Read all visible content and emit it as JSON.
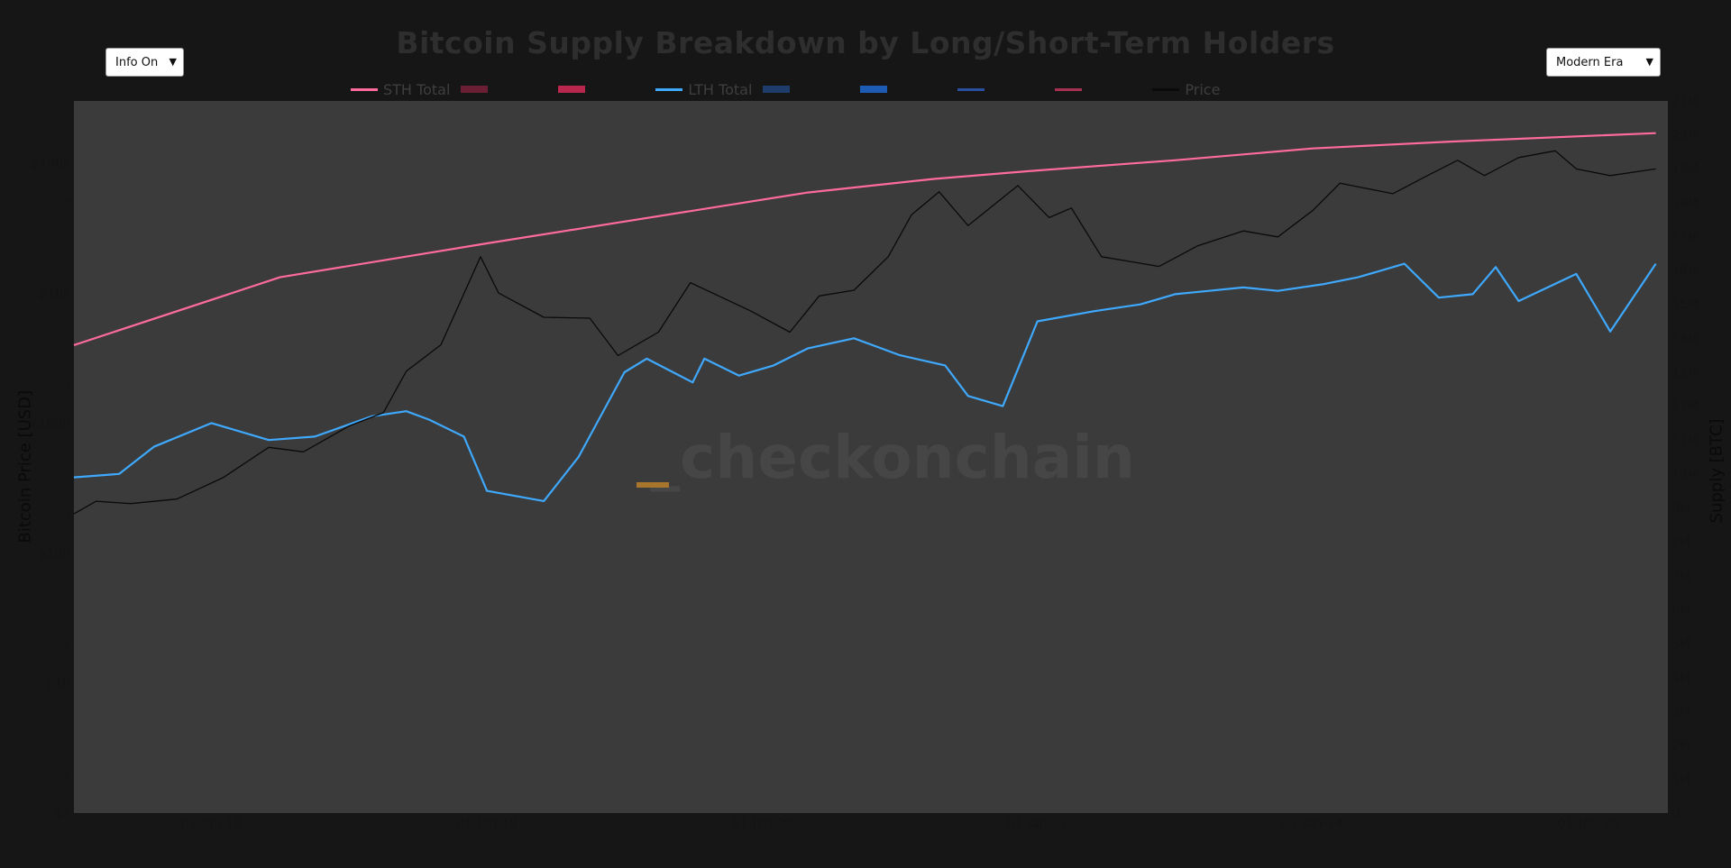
{
  "controls": {
    "info_label": "Info On",
    "era_label": "Modern Era"
  },
  "watermark": "_checkonchain",
  "chart_data": {
    "type": "line",
    "title": "Bitcoin Supply Breakdown by Long/Short-Term Holders",
    "ylabel_left": "Bitcoin Price [USD]",
    "ylabel_right": "Supply [BTC]",
    "x_ticks": [
      "01-Jan-16",
      "01-Jan-18",
      "01-Jan-20",
      "01-Jan-22",
      "01-Jan-24",
      "01-Jan-26"
    ],
    "x_range": [
      "2015-01-01",
      "2026-08-01"
    ],
    "y_left": {
      "scale": "log",
      "range": [
        1,
        300000
      ],
      "tick_labels": [
        "$1",
        "$10",
        "$100",
        "$1000",
        "$10k",
        "$100k"
      ],
      "tick_values": [
        1,
        10,
        100,
        1000,
        10000,
        100000
      ]
    },
    "y_right": {
      "scale": "linear",
      "range": [
        0,
        21000000
      ],
      "tick_labels": [
        "0",
        "1M",
        "2M",
        "3M",
        "4M",
        "5M",
        "6M",
        "7M",
        "8M",
        "9M",
        "10M",
        "11M",
        "12M",
        "13M",
        "14M",
        "15M",
        "16M",
        "17M",
        "18M",
        "19M",
        "20M",
        "21M"
      ]
    },
    "legend": [
      {
        "name": "STH Total",
        "color": "#ff6b9a",
        "style": "line"
      },
      {
        "name": "",
        "color": "#6a1f35",
        "style": "bar"
      },
      {
        "name": "",
        "color": "#b8284e",
        "style": "bar"
      },
      {
        "name": "LTH Total",
        "color": "#3fa9ff",
        "style": "line"
      },
      {
        "name": "",
        "color": "#1f3d6a",
        "style": "bar"
      },
      {
        "name": "",
        "color": "#1e5bb5",
        "style": "bar"
      },
      {
        "name": "",
        "color": "#2a4fa0",
        "style": "line"
      },
      {
        "name": "",
        "color": "#a83050",
        "style": "line"
      },
      {
        "name": "Price",
        "color": "#0a0a0a",
        "style": "line"
      }
    ],
    "series": [
      {
        "name": "STH Total",
        "axis": "right",
        "color": "#ff6b9a",
        "x": [
          "2015-01-01",
          "2016-07-01",
          "2018-01-01",
          "2020-05-01",
          "2021-04-01",
          "2022-01-01",
          "2023-01-01",
          "2024-01-01",
          "2025-01-01",
          "2026-06-30"
        ],
        "y": [
          13800000,
          15800000,
          16800000,
          18300000,
          18700000,
          18950000,
          19250000,
          19600000,
          19800000,
          20050000
        ]
      },
      {
        "name": "LTH Total",
        "axis": "right",
        "color": "#3fa9ff",
        "x": [
          "2015-01-01",
          "2015-05-01",
          "2015-08-01",
          "2016-01-01",
          "2016-06-01",
          "2016-10-01",
          "2017-03-01",
          "2017-06-01",
          "2017-08-01",
          "2017-11-01",
          "2018-01-01",
          "2018-06-01",
          "2018-09-01",
          "2019-01-01",
          "2019-03-01",
          "2019-07-01",
          "2019-08-01",
          "2019-11-01",
          "2020-02-01",
          "2020-05-01",
          "2020-09-01",
          "2021-01-01",
          "2021-05-01",
          "2021-07-01",
          "2021-10-01",
          "2022-01-01",
          "2022-06-01",
          "2022-10-01",
          "2023-01-01",
          "2023-04-01",
          "2023-07-01",
          "2023-10-01",
          "2024-02-01",
          "2024-05-01",
          "2024-09-01",
          "2024-12-01",
          "2025-03-01",
          "2025-05-01",
          "2025-07-01",
          "2025-12-01",
          "2026-03-01",
          "2026-06-30"
        ],
        "y": [
          9900000,
          10000000,
          10800000,
          11500000,
          11000000,
          11100000,
          11700000,
          11850000,
          11600000,
          11100000,
          9500000,
          9200000,
          10500000,
          13000000,
          13400000,
          12700000,
          13400000,
          12900000,
          13200000,
          13700000,
          14000000,
          13500000,
          13200000,
          12300000,
          12000000,
          14500000,
          14800000,
          15000000,
          15300000,
          15400000,
          15500000,
          15400000,
          15600000,
          15800000,
          16200000,
          15200000,
          15300000,
          16100000,
          15100000,
          15900000,
          14200000,
          16200000
        ]
      },
      {
        "name": "Price",
        "axis": "left",
        "color": "#0a0a0a",
        "x": [
          "2015-01-01",
          "2015-03-01",
          "2015-06-01",
          "2015-10-01",
          "2016-02-01",
          "2016-06-01",
          "2016-09-01",
          "2017-01-01",
          "2017-04-01",
          "2017-06-01",
          "2017-09-01",
          "2017-12-15",
          "2018-02-01",
          "2018-06-01",
          "2018-10-01",
          "2018-12-15",
          "2019-04-01",
          "2019-06-25",
          "2019-12-01",
          "2020-03-15",
          "2020-06-01",
          "2020-09-01",
          "2020-12-01",
          "2021-02-01",
          "2021-04-15",
          "2021-07-01",
          "2021-11-10",
          "2022-02-01",
          "2022-04-01",
          "2022-06-20",
          "2022-11-20",
          "2023-03-01",
          "2023-07-01",
          "2023-10-01",
          "2024-01-01",
          "2024-03-14",
          "2024-08-01",
          "2024-11-01",
          "2025-01-20",
          "2025-04-01",
          "2025-07-01",
          "2025-10-06",
          "2025-12-01",
          "2026-03-01",
          "2026-06-30"
        ],
        "y": [
          200,
          250,
          240,
          260,
          380,
          650,
          600,
          950,
          1200,
          2500,
          4000,
          19000,
          10000,
          6500,
          6400,
          3300,
          5000,
          12000,
          7300,
          5000,
          9500,
          10500,
          19000,
          40000,
          60000,
          33000,
          67000,
          38000,
          45000,
          19000,
          16000,
          23000,
          30000,
          27000,
          43000,
          70000,
          58000,
          80000,
          105000,
          80000,
          110000,
          124000,
          90000,
          80000,
          90000
        ]
      }
    ],
    "grid": false,
    "legend_placement": "top-center"
  }
}
